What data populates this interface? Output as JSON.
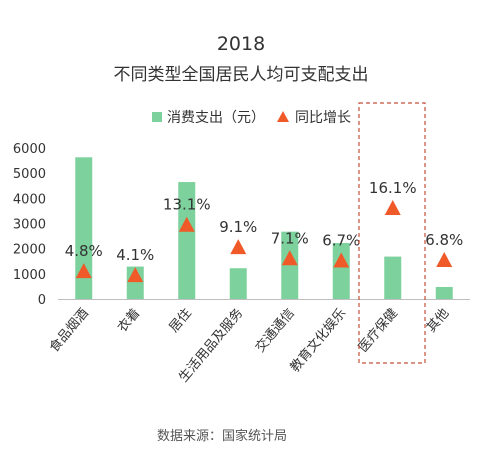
{
  "chart_data": {
    "type": "bar",
    "title": "2018",
    "subtitle": "不同类型全国居民人均可支配支出",
    "categories": [
      "食品烟酒",
      "衣着",
      "居住",
      "生活用品及服务",
      "交通通信",
      "教育文化娱乐",
      "医疗保健",
      "其他"
    ],
    "series": [
      {
        "name": "消费支出（元）",
        "type": "bar",
        "values": [
          5631,
          1289,
          4647,
          1223,
          2675,
          2226,
          1685,
          477
        ],
        "color": "#7dd19c"
      },
      {
        "name": "同比增长",
        "type": "marker",
        "marker": "triangle",
        "values": [
          4.8,
          4.1,
          13.1,
          9.1,
          7.1,
          6.7,
          16.1,
          6.8
        ],
        "labels": [
          "4.8%",
          "4.1%",
          "13.1%",
          "9.1%",
          "7.1%",
          "6.7%",
          "16.1%",
          "6.8%"
        ],
        "color": "#f05a28"
      }
    ],
    "yticks": [
      "0",
      "1000",
      "2000",
      "3000",
      "4000",
      "5000",
      "6000"
    ],
    "ylim": [
      0,
      6000
    ],
    "grid": false,
    "legend_position": "top",
    "highlight_category": "医疗保健",
    "source": "数据来源：国家统计局"
  }
}
